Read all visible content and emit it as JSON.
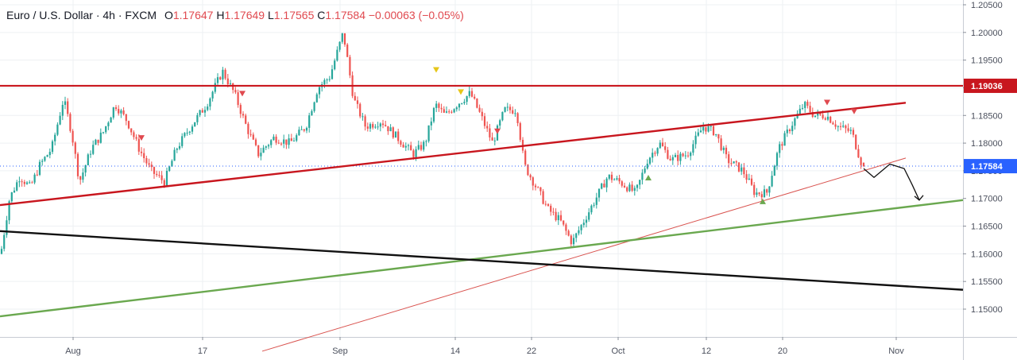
{
  "legend": {
    "symbol": "Euro / U.S. Dollar · 4h · FXCM",
    "open_label": "O",
    "open": "1.17647",
    "high_label": "H",
    "high": "1.17649",
    "low_label": "L",
    "low": "1.17565",
    "close_label": "C",
    "close": "1.17584",
    "change": "−0.00063 (−0.05%)"
  },
  "colors": {
    "up": "#26a69a",
    "down": "#ef5350",
    "resistance": "#c8161e",
    "support_black": "#111111",
    "support_green": "#6aa84f",
    "last_price_tag": "#2962ff",
    "resistance_tag": "#c8161e",
    "marker_up": "#6aa84f",
    "marker_down": "#e0494f",
    "marker_yellow": "#e6c619"
  },
  "chart_data": {
    "type": "candlestick",
    "price_axis": {
      "ticks": [
        "1.20500",
        "1.20000",
        "1.19500",
        "1.19000",
        "1.18500",
        "1.18000",
        "1.17500",
        "1.17000",
        "1.16500",
        "1.16000",
        "1.15500",
        "1.15000"
      ],
      "range": [
        1.144,
        1.2055
      ]
    },
    "time_axis": {
      "labels": [
        "Aug",
        "17",
        "Sep",
        "14",
        "22",
        "Oct",
        "12",
        "20",
        "Nov"
      ]
    },
    "price_path": [
      [
        1,
        1.16
      ],
      [
        12,
        1.17
      ],
      [
        25,
        1.174
      ],
      [
        38,
        1.172
      ],
      [
        50,
        1.176
      ],
      [
        65,
        1.179
      ],
      [
        80,
        1.188
      ],
      [
        90,
        1.182
      ],
      [
        100,
        1.173
      ],
      [
        115,
        1.179
      ],
      [
        130,
        1.182
      ],
      [
        145,
        1.187
      ],
      [
        160,
        1.184
      ],
      [
        175,
        1.179
      ],
      [
        190,
        1.175
      ],
      [
        207,
        1.173
      ],
      [
        222,
        1.179
      ],
      [
        240,
        1.183
      ],
      [
        260,
        1.187
      ],
      [
        280,
        1.193
      ],
      [
        295,
        1.189
      ],
      [
        310,
        1.183
      ],
      [
        325,
        1.178
      ],
      [
        345,
        1.181
      ],
      [
        365,
        1.18
      ],
      [
        385,
        1.183
      ],
      [
        400,
        1.19
      ],
      [
        415,
        1.192
      ],
      [
        432,
        1.2
      ],
      [
        445,
        1.188
      ],
      [
        460,
        1.183
      ],
      [
        480,
        1.184
      ],
      [
        500,
        1.181
      ],
      [
        520,
        1.178
      ],
      [
        535,
        1.18
      ],
      [
        548,
        1.187
      ],
      [
        560,
        1.185
      ],
      [
        575,
        1.187
      ],
      [
        592,
        1.189
      ],
      [
        605,
        1.185
      ],
      [
        620,
        1.18
      ],
      [
        635,
        1.186
      ],
      [
        650,
        1.186
      ],
      [
        660,
        1.176
      ],
      [
        675,
        1.172
      ],
      [
        690,
        1.168
      ],
      [
        705,
        1.166
      ],
      [
        720,
        1.162
      ],
      [
        735,
        1.166
      ],
      [
        750,
        1.17
      ],
      [
        765,
        1.174
      ],
      [
        780,
        1.173
      ],
      [
        800,
        1.171
      ],
      [
        815,
        1.177
      ],
      [
        830,
        1.18
      ],
      [
        845,
        1.177
      ],
      [
        865,
        1.178
      ],
      [
        885,
        1.183
      ],
      [
        900,
        1.182
      ],
      [
        915,
        1.177
      ],
      [
        935,
        1.175
      ],
      [
        950,
        1.171
      ],
      [
        965,
        1.171
      ],
      [
        980,
        1.179
      ],
      [
        995,
        1.183
      ],
      [
        1012,
        1.187
      ],
      [
        1025,
        1.185
      ],
      [
        1040,
        1.185
      ],
      [
        1055,
        1.183
      ],
      [
        1072,
        1.182
      ],
      [
        1085,
        1.176
      ]
    ],
    "last_candle": {
      "open": 1.17647,
      "high": 1.17649,
      "low": 1.17565,
      "close": 1.17584
    },
    "horizontal_levels": [
      {
        "name": "resistance",
        "price": 1.19036,
        "label": "1.19036"
      }
    ],
    "last_price": {
      "price": 1.17584,
      "label": "1.17584"
    },
    "trendlines": [
      {
        "name": "rising-channel-top",
        "p1": [
          0,
          1.1688
        ],
        "p2": [
          1140,
          1.1873
        ]
      },
      {
        "name": "thin-red-support",
        "p1": [
          330,
          1.1424
        ],
        "p2": [
          1140,
          1.1773
        ]
      },
      {
        "name": "green-support",
        "p1": [
          0,
          1.1487
        ],
        "p2": [
          1212,
          1.1697
        ]
      },
      {
        "name": "black-descending",
        "p1": [
          0,
          1.1641
        ],
        "p2": [
          1212,
          1.1535
        ]
      }
    ],
    "markers": [
      {
        "kind": "down",
        "color": "marker_down",
        "x": 178,
        "price": 1.181
      },
      {
        "kind": "down",
        "color": "marker_down",
        "x": 305,
        "price": 1.189
      },
      {
        "kind": "down-yellow",
        "color": "marker_yellow",
        "x": 549,
        "price": 1.1933
      },
      {
        "kind": "down-yellow",
        "color": "marker_yellow",
        "x": 580,
        "price": 1.1893
      },
      {
        "kind": "down",
        "color": "marker_down",
        "x": 626,
        "price": 1.1822
      },
      {
        "kind": "up",
        "color": "marker_up",
        "x": 816,
        "price": 1.1737
      },
      {
        "kind": "up",
        "color": "marker_up",
        "x": 960,
        "price": 1.1694
      },
      {
        "kind": "down",
        "color": "marker_down",
        "x": 1041,
        "price": 1.1874
      },
      {
        "kind": "down",
        "color": "marker_down",
        "x": 1075,
        "price": 1.1858
      }
    ],
    "projection": [
      [
        1087,
        1.1754
      ],
      [
        1100,
        1.1738
      ],
      [
        1120,
        1.1762
      ],
      [
        1138,
        1.1754
      ],
      [
        1148,
        1.1725
      ],
      [
        1157,
        1.1697
      ]
    ]
  }
}
